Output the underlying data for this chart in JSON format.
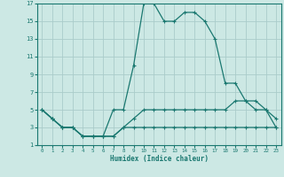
{
  "xlabel": "Humidex (Indice chaleur)",
  "background_color": "#cce8e4",
  "grid_color": "#aaccca",
  "line_color": "#1a7870",
  "xlim": [
    -0.5,
    23.5
  ],
  "ylim": [
    1,
    17
  ],
  "xticks": [
    0,
    1,
    2,
    3,
    4,
    5,
    6,
    7,
    8,
    9,
    10,
    11,
    12,
    13,
    14,
    15,
    16,
    17,
    18,
    19,
    20,
    21,
    22,
    23
  ],
  "yticks": [
    1,
    3,
    5,
    7,
    9,
    11,
    13,
    15,
    17
  ],
  "series": [
    {
      "x": [
        0,
        1,
        2,
        3,
        4,
        5,
        6,
        7,
        8,
        9,
        10,
        11,
        12,
        13,
        14,
        15,
        16,
        17,
        18,
        19,
        20,
        21,
        22,
        23
      ],
      "y": [
        5,
        4,
        3,
        3,
        2,
        2,
        2,
        5,
        5,
        10,
        17,
        17,
        15,
        15,
        16,
        16,
        15,
        13,
        8,
        8,
        6,
        5,
        5,
        4
      ]
    },
    {
      "x": [
        0,
        1,
        2,
        3,
        4,
        5,
        6,
        7,
        8,
        9,
        10,
        11,
        12,
        13,
        14,
        15,
        16,
        17,
        18,
        19,
        20,
        21,
        22,
        23
      ],
      "y": [
        5,
        4,
        3,
        3,
        2,
        2,
        2,
        2,
        3,
        4,
        5,
        5,
        5,
        5,
        5,
        5,
        5,
        5,
        5,
        6,
        6,
        6,
        5,
        3
      ]
    },
    {
      "x": [
        0,
        1,
        2,
        3,
        4,
        5,
        6,
        7,
        8,
        9,
        10,
        11,
        12,
        13,
        14,
        15,
        16,
        17,
        18,
        19,
        20,
        21,
        22,
        23
      ],
      "y": [
        5,
        4,
        3,
        3,
        2,
        2,
        2,
        2,
        3,
        3,
        3,
        3,
        3,
        3,
        3,
        3,
        3,
        3,
        3,
        3,
        3,
        3,
        3,
        3
      ]
    }
  ]
}
